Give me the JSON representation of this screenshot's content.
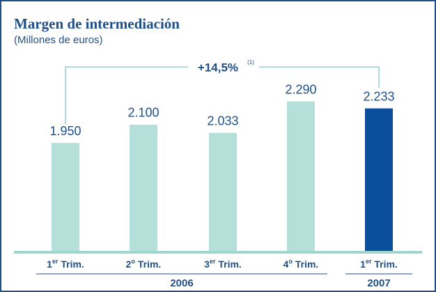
{
  "chart_data": {
    "type": "bar",
    "title": "Margen de intermediación",
    "subtitle": "(Millones de euros)",
    "annotation": "+14,5%",
    "annotation_note": "(1)",
    "categories": [
      "1er Trim.",
      "2o Trim.",
      "3er Trim.",
      "4o Trim.",
      "1er Trim."
    ],
    "groups": [
      "2006",
      "2007"
    ],
    "values": [
      1950,
      2100,
      2033,
      2290,
      2233
    ],
    "value_labels": [
      "1.950",
      "2.100",
      "2.033",
      "2.290",
      "2.233"
    ],
    "colors": [
      "#b5e0da",
      "#b5e0da",
      "#b5e0da",
      "#b5e0da",
      "#0b4f9c"
    ],
    "ylim": [
      1066,
      2550
    ]
  }
}
